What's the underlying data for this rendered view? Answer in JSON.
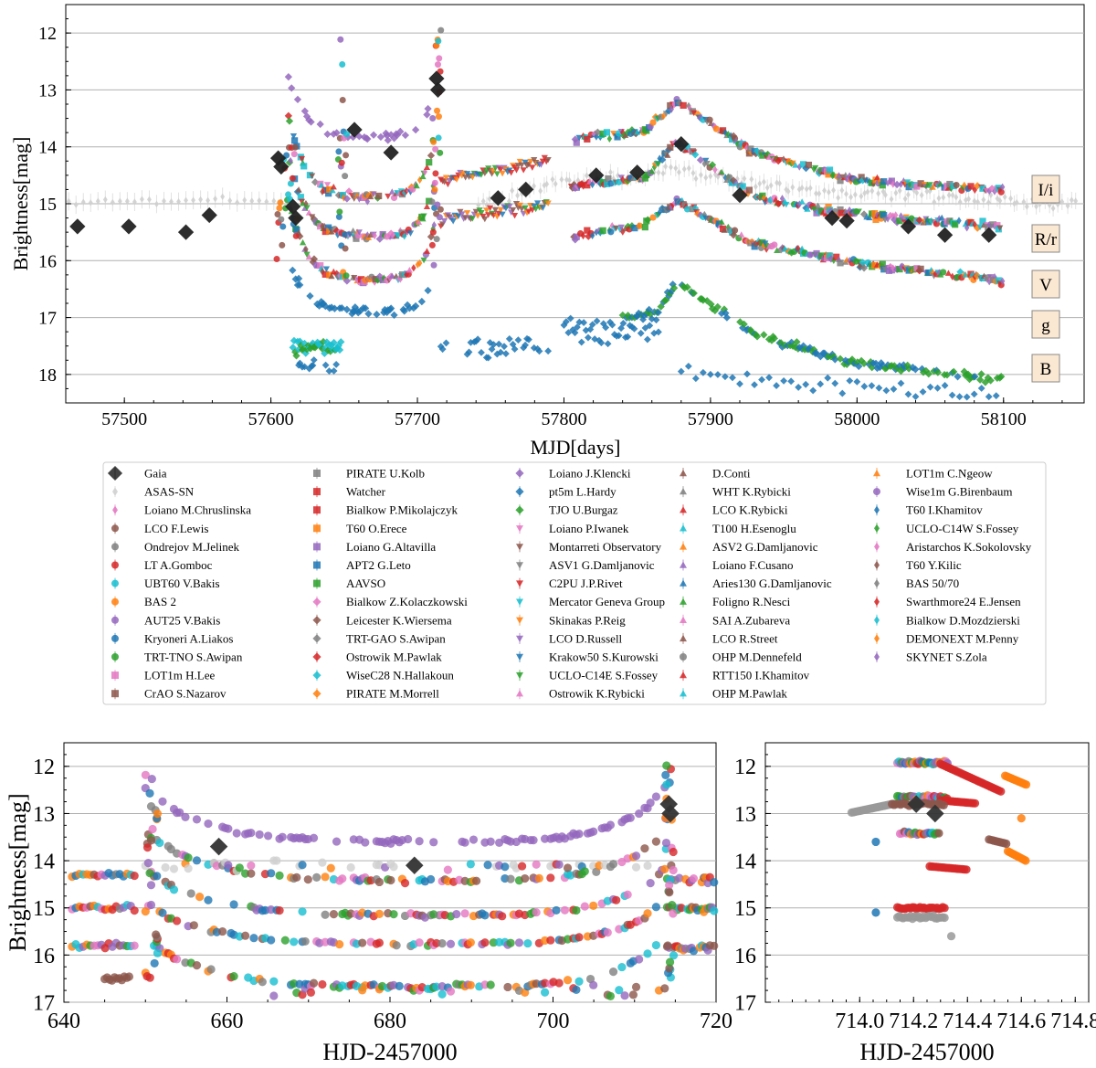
{
  "chart_data": [
    {
      "type": "scatter",
      "title": "",
      "xlabel": "MJD[days]",
      "ylabel": "Brightness[mag]",
      "xlim": [
        57460,
        58155
      ],
      "ylim": [
        18.5,
        11.5
      ],
      "y_inverted": true,
      "grid": "horizontal",
      "x_ticks": [
        "57500",
        "57600",
        "57700",
        "57800",
        "57900",
        "58000",
        "58100"
      ],
      "y_ticks": [
        "12",
        "13",
        "14",
        "15",
        "16",
        "17",
        "18"
      ],
      "band_labels": [
        {
          "label": "I/i",
          "mag": 14.8
        },
        {
          "label": "R/r",
          "mag": 15.6
        },
        {
          "label": "V",
          "mag": 16.4
        },
        {
          "label": "g",
          "mag": 17.1
        },
        {
          "label": "B",
          "mag": 17.9
        }
      ],
      "gaia_points": [
        {
          "x": 57468,
          "y": 15.4
        },
        {
          "x": 57503,
          "y": 15.4
        },
        {
          "x": 57542,
          "y": 15.5
        },
        {
          "x": 57558,
          "y": 15.2
        },
        {
          "x": 57605,
          "y": 14.2
        },
        {
          "x": 57607,
          "y": 14.35
        },
        {
          "x": 57615,
          "y": 15.05
        },
        {
          "x": 57617,
          "y": 15.25
        },
        {
          "x": 57657,
          "y": 13.7
        },
        {
          "x": 57682,
          "y": 14.1
        },
        {
          "x": 57713,
          "y": 12.8
        },
        {
          "x": 57714,
          "y": 13.0
        },
        {
          "x": 57755,
          "y": 14.9
        },
        {
          "x": 57774,
          "y": 14.75
        },
        {
          "x": 57822,
          "y": 14.5
        },
        {
          "x": 57850,
          "y": 14.45
        },
        {
          "x": 57880,
          "y": 13.95
        },
        {
          "x": 57920,
          "y": 14.85
        },
        {
          "x": 57983,
          "y": 15.25
        },
        {
          "x": 57993,
          "y": 15.3
        },
        {
          "x": 58035,
          "y": 15.4
        },
        {
          "x": 58060,
          "y": 15.55
        },
        {
          "x": 58090,
          "y": 15.55
        }
      ]
    },
    {
      "type": "scatter",
      "xlabel": "HJD-2457000",
      "ylabel": "Brightness[mag]",
      "xlim": [
        640,
        720
      ],
      "ylim": [
        17,
        11.5
      ],
      "y_inverted": true,
      "grid": "horizontal",
      "x_ticks": [
        "640",
        "660",
        "680",
        "700",
        "720"
      ],
      "y_ticks": [
        "12",
        "13",
        "14",
        "15",
        "16",
        "17"
      ],
      "gaia_points": [
        {
          "x": 659,
          "y": 13.7
        },
        {
          "x": 683,
          "y": 14.1
        },
        {
          "x": 714.2,
          "y": 12.8
        },
        {
          "x": 714.4,
          "y": 13.0
        }
      ]
    },
    {
      "type": "scatter",
      "xlabel": "HJD-2457000",
      "xlim": [
        713.65,
        714.85
      ],
      "ylim": [
        17,
        11.5
      ],
      "y_inverted": true,
      "grid": "horizontal",
      "x_ticks": [
        "714.0",
        "714.2",
        "714.4",
        "714.6",
        "714.8"
      ],
      "y_ticks": [
        "12",
        "13",
        "14",
        "15",
        "16",
        "17"
      ],
      "gaia_points": [
        {
          "x": 714.21,
          "y": 12.8
        },
        {
          "x": 714.28,
          "y": 13.0
        }
      ]
    }
  ],
  "legend": {
    "entries": [
      {
        "label": "Gaia",
        "color": "#222222",
        "marker": "D"
      },
      {
        "label": "ASAS-SN",
        "color": "#cfcfcf",
        "marker": "d"
      },
      {
        "label": "Loiano M.Chruslinska",
        "color": "#e377c2",
        "marker": "d"
      },
      {
        "label": "LCO F.Lewis",
        "color": "#8c564b",
        "marker": "o"
      },
      {
        "label": "Ondrejov M.Jelinek",
        "color": "#7f7f7f",
        "marker": "o"
      },
      {
        "label": "LT A.Gomboc",
        "color": "#d62728",
        "marker": "o"
      },
      {
        "label": "UBT60 V.Bakis",
        "color": "#17becf",
        "marker": "o"
      },
      {
        "label": "BAS 2",
        "color": "#ff7f0e",
        "marker": "o"
      },
      {
        "label": "AUT25 V.Bakis",
        "color": "#9467bd",
        "marker": "o"
      },
      {
        "label": "Kryoneri A.Liakos",
        "color": "#1f77b4",
        "marker": "o"
      },
      {
        "label": "TRT-TNO S.Awipan",
        "color": "#2ca02c",
        "marker": "o"
      },
      {
        "label": "LOT1m H.Lee",
        "color": "#e377c2",
        "marker": "s"
      },
      {
        "label": "CrAO S.Nazarov",
        "color": "#8c564b",
        "marker": "s"
      },
      {
        "label": "PIRATE U.Kolb",
        "color": "#7f7f7f",
        "marker": "s"
      },
      {
        "label": "Watcher",
        "color": "#d62728",
        "marker": "s"
      },
      {
        "label": "Bialkow P.Mikolajczyk",
        "color": "#d62728",
        "marker": "s"
      },
      {
        "label": "T60 O.Erece",
        "color": "#ff7f0e",
        "marker": "s"
      },
      {
        "label": "Loiano G.Altavilla",
        "color": "#9467bd",
        "marker": "s"
      },
      {
        "label": "APT2 G.Leto",
        "color": "#1f77b4",
        "marker": "s"
      },
      {
        "label": "AAVSO",
        "color": "#2ca02c",
        "marker": "s"
      },
      {
        "label": "Bialkow Z.Kolaczkowski",
        "color": "#e377c2",
        "marker": "D"
      },
      {
        "label": "Leicester K.Wiersema",
        "color": "#8c564b",
        "marker": "D"
      },
      {
        "label": "TRT-GAO S.Awipan",
        "color": "#7f7f7f",
        "marker": "D"
      },
      {
        "label": "Ostrowik M.Pawlak",
        "color": "#d62728",
        "marker": "D"
      },
      {
        "label": "WiseC28 N.Hallakoun",
        "color": "#17becf",
        "marker": "D"
      },
      {
        "label": "PIRATE M.Morrell",
        "color": "#ff7f0e",
        "marker": "D"
      },
      {
        "label": "Loiano J.Klencki",
        "color": "#9467bd",
        "marker": "D"
      },
      {
        "label": "pt5m L.Hardy",
        "color": "#1f77b4",
        "marker": "D"
      },
      {
        "label": "TJO U.Burgaz",
        "color": "#2ca02c",
        "marker": "D"
      },
      {
        "label": "Loiano P.Iwanek",
        "color": "#e377c2",
        "marker": "v"
      },
      {
        "label": "Montarreti Observatory",
        "color": "#8c564b",
        "marker": "v"
      },
      {
        "label": "ASV1 G.Damljanovic",
        "color": "#7f7f7f",
        "marker": "v"
      },
      {
        "label": "C2PU J.P.Rivet",
        "color": "#d62728",
        "marker": "v"
      },
      {
        "label": "Mercator Geneva Group",
        "color": "#17becf",
        "marker": "v"
      },
      {
        "label": "Skinakas P.Reig",
        "color": "#ff7f0e",
        "marker": "v"
      },
      {
        "label": "LCO D.Russell",
        "color": "#9467bd",
        "marker": "v"
      },
      {
        "label": "Krakow50 S.Kurowski",
        "color": "#1f77b4",
        "marker": "v"
      },
      {
        "label": "UCLO-C14E S.Fossey",
        "color": "#2ca02c",
        "marker": "v"
      },
      {
        "label": "Ostrowik K.Rybicki",
        "color": "#e377c2",
        "marker": "^"
      },
      {
        "label": "D.Conti",
        "color": "#8c564b",
        "marker": "^"
      },
      {
        "label": "WHT K.Rybicki",
        "color": "#7f7f7f",
        "marker": "^"
      },
      {
        "label": "LCO K.Rybicki",
        "color": "#d62728",
        "marker": "^"
      },
      {
        "label": "T100 H.Esenoglu",
        "color": "#17becf",
        "marker": "^"
      },
      {
        "label": "ASV2 G.Damljanovic",
        "color": "#ff7f0e",
        "marker": "^"
      },
      {
        "label": "Loiano F.Cusano",
        "color": "#9467bd",
        "marker": "^"
      },
      {
        "label": "Aries130 G.Damljanovic",
        "color": "#1f77b4",
        "marker": "^"
      },
      {
        "label": "Foligno R.Nesci",
        "color": "#2ca02c",
        "marker": "^"
      },
      {
        "label": "SAI A.Zubareva",
        "color": "#e377c2",
        "marker": "^"
      },
      {
        "label": "LCO R.Street",
        "color": "#8c564b",
        "marker": "^"
      },
      {
        "label": "OHP M.Dennefeld",
        "color": "#7f7f7f",
        "marker": "o"
      },
      {
        "label": "RTT150 I.Khamitov",
        "color": "#d62728",
        "marker": "^"
      },
      {
        "label": "OHP M.Pawlak",
        "color": "#17becf",
        "marker": "^"
      },
      {
        "label": "LOT1m C.Ngeow",
        "color": "#ff7f0e",
        "marker": "^"
      },
      {
        "label": "Wise1m G.Birenbaum",
        "color": "#9467bd",
        "marker": "o"
      },
      {
        "label": "T60 I.Khamitov",
        "color": "#1f77b4",
        "marker": "d"
      },
      {
        "label": "UCLO-C14W S.Fossey",
        "color": "#2ca02c",
        "marker": "d"
      },
      {
        "label": "Aristarchos K.Sokolovsky",
        "color": "#e377c2",
        "marker": "d"
      },
      {
        "label": "T60 Y.Kilic",
        "color": "#8c564b",
        "marker": "d"
      },
      {
        "label": "BAS 50/70",
        "color": "#7f7f7f",
        "marker": "d"
      },
      {
        "label": "Swarthmore24 E.Jensen",
        "color": "#d62728",
        "marker": "d"
      },
      {
        "label": "Bialkow D.Mozdzierski",
        "color": "#17becf",
        "marker": "d"
      },
      {
        "label": "DEMONEXT M.Penny",
        "color": "#ff7f0e",
        "marker": "d"
      },
      {
        "label": "SKYNET S.Zola",
        "color": "#9467bd",
        "marker": "d"
      }
    ]
  }
}
